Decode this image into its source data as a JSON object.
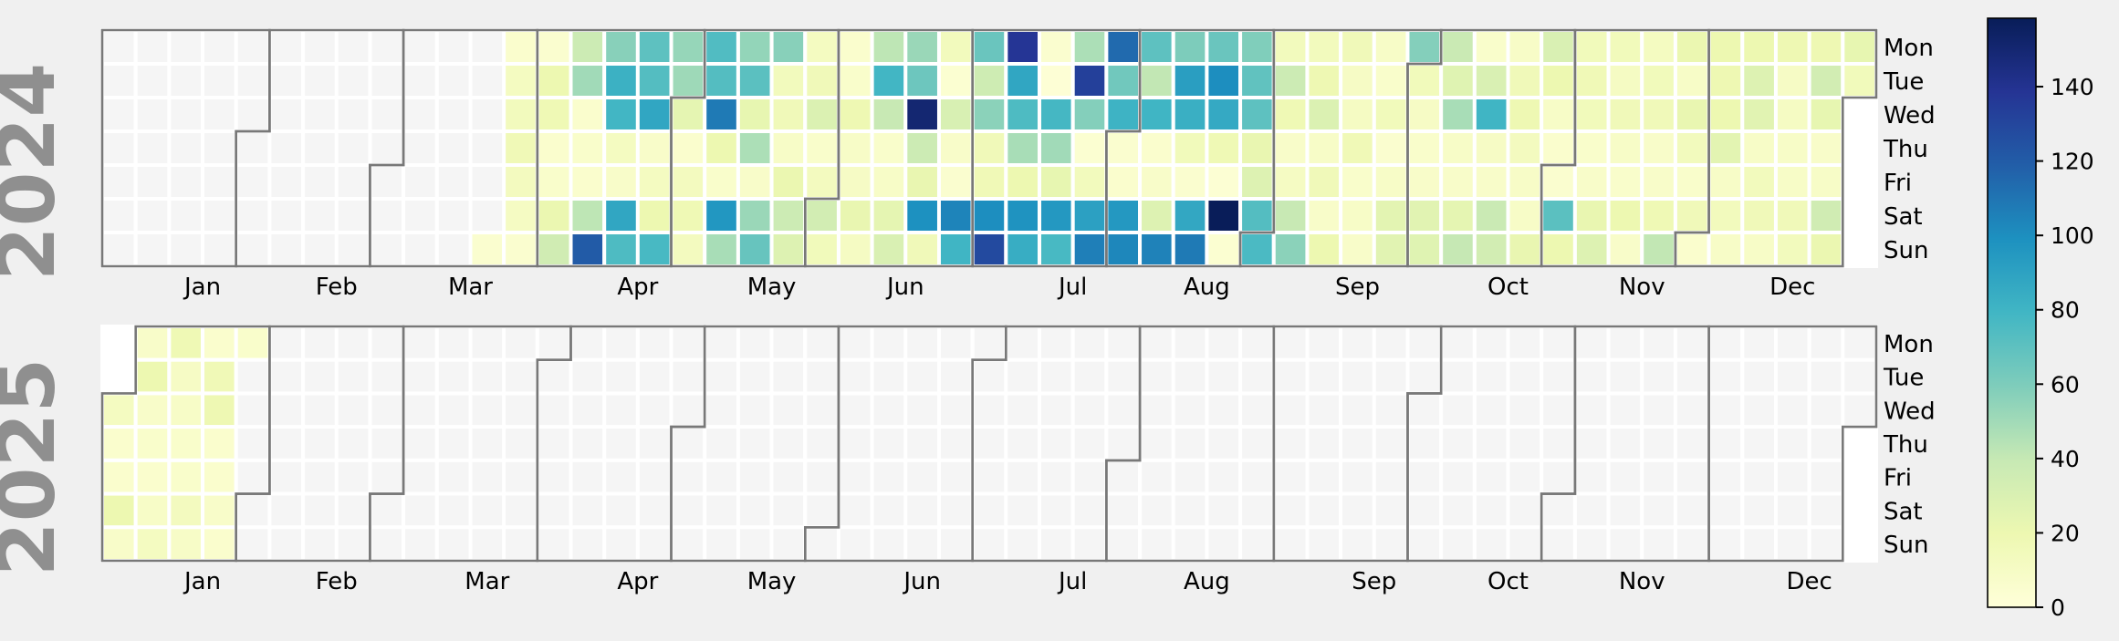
{
  "figure": {
    "background": "#f0f0f0",
    "empty_cell_color": "#f5f5f5",
    "out_of_year_color": "#ffffff",
    "gridline_color": "#ffffff",
    "month_border_color": "#787878",
    "year_label_color": "#8f8f8f",
    "label_color": "#000000",
    "colorbar_outline_color": "#000000"
  },
  "chart_data": {
    "type": "heatmap",
    "subtype": "calplot-calendar-heatmap",
    "colormap": "YlGnBu",
    "vmin": 0,
    "vmax": 158.4,
    "grid": "white gaps between day cells",
    "legend_position": "colorbar right",
    "colorbar_ticks": [
      0,
      20,
      40,
      60,
      80,
      100,
      120,
      140
    ],
    "colorbar_stops": [
      "#ffffd9",
      "#edf8b1",
      "#c7e9b4",
      "#7fcdbb",
      "#41b6c4",
      "#1d91c0",
      "#225ea8",
      "#253494",
      "#081d58"
    ],
    "day_labels": [
      "Mon",
      "Tue",
      "Wed",
      "Thu",
      "Fri",
      "Sat",
      "Sun"
    ],
    "month_labels": [
      "Jan",
      "Feb",
      "Mar",
      "Apr",
      "May",
      "Jun",
      "Jul",
      "Aug",
      "Sep",
      "Oct",
      "Nov",
      "Dec"
    ],
    "years": [
      {
        "label": "2024",
        "first_value_date": "2024-03-24",
        "last_value_date": "2024-12-31",
        "daily_values": [
          5,
          6,
          12,
          14,
          17,
          13,
          11,
          5,
          5,
          20,
          18,
          6,
          7,
          21,
          35,
          37,
          50,
          6,
          7,
          6,
          42,
          120,
          57,
          82,
          79,
          12,
          8,
          88,
          75,
          70,
          73,
          88,
          8,
          12,
          20,
          77,
          53,
          51,
          24,
          6,
          13,
          18,
          13,
          74,
          73,
          108,
          20,
          7,
          96,
          48,
          54,
          71,
          23,
          47,
          8,
          52,
          67,
          57,
          14,
          16,
          9,
          21,
          37,
          28,
          12,
          16,
          29,
          7,
          13,
          34,
          15,
          6,
          7,
          19,
          9,
          10,
          22,
          11,
          42,
          79,
          39,
          7,
          9,
          24,
          30,
          52,
          65,
          150,
          37,
          22,
          99,
          16,
          14,
          4,
          31,
          8,
          5,
          104,
          80,
          66,
          36,
          56,
          16,
          17,
          100,
          128,
          138,
          88,
          75,
          48,
          20,
          98,
          84,
          5,
          2,
          78,
          50,
          23,
          95,
          77,
          47,
          133,
          58,
          4,
          14,
          91,
          106,
          114,
          64,
          81,
          5,
          6,
          95,
          103,
          70,
          41,
          80,
          6,
          8,
          28,
          105,
          60,
          92,
          83,
          15,
          5,
          87,
          108,
          66,
          100,
          86,
          18,
          3,
          158,
          4,
          59,
          69,
          70,
          22,
          28,
          73,
          76,
          14,
          37,
          18,
          8,
          11,
          39,
          56,
          14,
          19,
          29,
          9,
          16,
          8,
          20,
          16,
          10,
          11,
          17,
          7,
          9,
          8,
          9,
          7,
          15,
          5,
          9,
          25,
          26,
          58,
          15,
          10,
          7,
          8,
          26,
          27,
          38,
          27,
          48,
          9,
          8,
          24,
          40,
          7,
          30,
          80,
          10,
          8,
          38,
          34,
          9,
          16,
          19,
          13,
          9,
          9,
          22,
          30,
          20,
          9,
          6,
          5,
          71,
          20,
          15,
          17,
          15,
          7,
          8,
          22,
          28,
          15,
          11,
          16,
          9,
          7,
          20,
          8,
          12,
          15,
          16,
          8,
          8,
          18,
          41,
          21,
          9,
          22,
          14,
          7,
          16,
          6,
          20,
          19,
          20,
          25,
          9,
          14,
          9,
          20,
          28,
          26,
          9,
          14,
          16,
          9,
          19,
          10,
          11,
          9,
          9,
          16,
          14,
          19,
          34,
          23,
          8,
          9,
          35,
          21,
          23,
          15
        ]
      },
      {
        "label": "2025",
        "first_value_date": "2025-01-01",
        "last_value_date": "2025-01-27",
        "daily_values": [
          12,
          6,
          6,
          20,
          8,
          8,
          20,
          8,
          7,
          6,
          9,
          12,
          18,
          10,
          9,
          7,
          7,
          13,
          9,
          6,
          17,
          19,
          6,
          6,
          8,
          6,
          7
        ]
      }
    ]
  }
}
